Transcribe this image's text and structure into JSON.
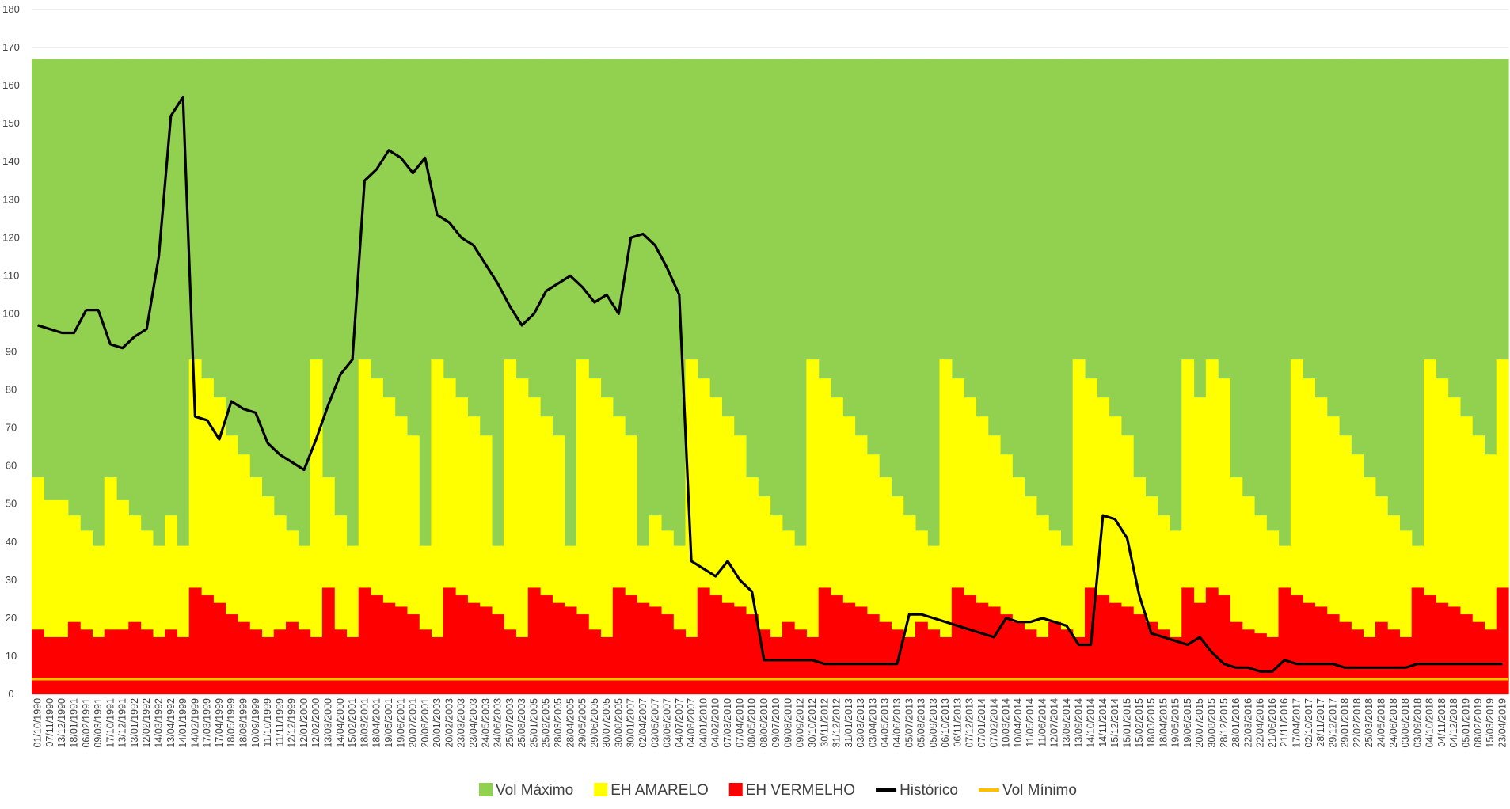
{
  "chart_data": {
    "type": "area",
    "title": "",
    "xlabel": "",
    "ylabel": "",
    "ylim": [
      0,
      180
    ],
    "yticks": [
      0,
      10,
      20,
      30,
      40,
      50,
      60,
      70,
      80,
      90,
      100,
      110,
      120,
      130,
      140,
      150,
      160,
      170,
      180
    ],
    "grid": "horizontal",
    "legend_position": "bottom",
    "categories": [
      "01/10/1990",
      "07/11/1990",
      "13/12/1990",
      "18/01/1991",
      "06/02/1991",
      "09/03/1991",
      "17/10/1991",
      "13/12/1991",
      "13/01/1992",
      "12/02/1992",
      "14/03/1992",
      "13/04/1992",
      "14/01/1999",
      "14/02/1999",
      "17/03/1999",
      "17/04/1999",
      "18/05/1999",
      "18/08/1999",
      "10/09/1999",
      "11/10/1999",
      "11/11/1999",
      "12/12/1999",
      "12/01/2000",
      "12/02/2000",
      "13/03/2000",
      "14/04/2000",
      "15/02/2001",
      "18/03/2001",
      "18/04/2001",
      "19/05/2001",
      "19/06/2001",
      "20/07/2001",
      "20/08/2001",
      "20/01/2003",
      "20/02/2003",
      "23/03/2003",
      "23/04/2003",
      "24/05/2003",
      "24/06/2003",
      "25/07/2003",
      "25/08/2003",
      "25/01/2005",
      "25/02/2005",
      "28/03/2005",
      "28/04/2005",
      "29/05/2005",
      "29/06/2005",
      "30/07/2005",
      "30/08/2005",
      "30/01/2007",
      "02/04/2007",
      "03/05/2007",
      "03/06/2007",
      "04/07/2007",
      "04/08/2007",
      "04/01/2010",
      "04/02/2010",
      "07/03/2010",
      "07/04/2010",
      "08/05/2010",
      "08/06/2010",
      "09/07/2010",
      "09/08/2010",
      "09/09/2012",
      "30/10/2012",
      "30/11/2012",
      "31/12/2012",
      "31/01/2013",
      "03/03/2013",
      "03/04/2013",
      "04/05/2013",
      "04/06/2013",
      "05/07/2013",
      "05/08/2013",
      "05/09/2013",
      "06/10/2013",
      "06/11/2013",
      "07/12/2013",
      "07/01/2014",
      "07/02/2014",
      "10/03/2014",
      "10/04/2014",
      "11/05/2014",
      "11/06/2014",
      "12/07/2014",
      "13/08/2014",
      "13/09/2014",
      "14/10/2014",
      "14/11/2014",
      "15/12/2014",
      "15/01/2015",
      "15/02/2015",
      "18/03/2015",
      "18/04/2015",
      "19/05/2015",
      "19/06/2015",
      "20/07/2015",
      "30/08/2015",
      "28/12/2015",
      "28/01/2016",
      "22/03/2016",
      "22/04/2016",
      "21/06/2016",
      "21/11/2016",
      "17/04/2017",
      "02/10/2017",
      "28/11/2017",
      "29/12/2017",
      "29/01/2018",
      "22/02/2018",
      "25/03/2018",
      "24/05/2018",
      "24/06/2018",
      "03/08/2018",
      "03/09/2018",
      "04/10/2018",
      "04/11/2018",
      "04/12/2018",
      "05/01/2019",
      "08/02/2019",
      "15/03/2019",
      "23/04/2019"
    ],
    "series": [
      {
        "name": "Vol Máximo",
        "color": "#92d050",
        "values": [
          167,
          167,
          167,
          167,
          167,
          167,
          167,
          167,
          167,
          167,
          167,
          167,
          167,
          167,
          167,
          167,
          167,
          167,
          167,
          167,
          167,
          167,
          167,
          167,
          167,
          167,
          167,
          167,
          167,
          167,
          167,
          167,
          167,
          167,
          167,
          167,
          167,
          167,
          167,
          167,
          167,
          167,
          167,
          167,
          167,
          167,
          167,
          167,
          167,
          167,
          167,
          167,
          167,
          167,
          167,
          167,
          167,
          167,
          167,
          167,
          167,
          167,
          167,
          167,
          167,
          167,
          167,
          167,
          167,
          167,
          167,
          167,
          167,
          167,
          167,
          167,
          167,
          167,
          167,
          167,
          167,
          167,
          167,
          167,
          167,
          167,
          167,
          167,
          167,
          167,
          167,
          167,
          167,
          167,
          167,
          167,
          167,
          167,
          167,
          167,
          167,
          167,
          167,
          167,
          167,
          167,
          167,
          167,
          167,
          167,
          167,
          167,
          167,
          167,
          167,
          167,
          167,
          167,
          167,
          167,
          167,
          167
        ]
      },
      {
        "name": "EH AMARELO",
        "color": "#ffff00",
        "values": [
          57,
          51,
          51,
          47,
          43,
          39,
          57,
          51,
          47,
          43,
          39,
          47,
          39,
          88,
          83,
          78,
          68,
          63,
          57,
          52,
          47,
          43,
          39,
          88,
          57,
          47,
          39,
          88,
          83,
          78,
          73,
          68,
          39,
          88,
          83,
          78,
          73,
          68,
          39,
          88,
          83,
          78,
          73,
          68,
          39,
          88,
          83,
          78,
          73,
          68,
          39,
          47,
          43,
          39,
          88,
          83,
          78,
          73,
          68,
          57,
          52,
          47,
          43,
          39,
          88,
          83,
          78,
          73,
          68,
          63,
          57,
          52,
          47,
          43,
          39,
          88,
          83,
          78,
          73,
          68,
          63,
          57,
          52,
          47,
          43,
          39,
          88,
          83,
          78,
          73,
          68,
          57,
          52,
          47,
          43,
          88,
          78,
          88,
          83,
          57,
          52,
          47,
          43,
          39,
          88,
          83,
          78,
          73,
          68,
          63,
          57,
          52,
          47,
          43,
          39,
          88,
          83,
          78,
          73,
          68,
          63,
          88
        ]
      },
      {
        "name": "EH VERMELHO",
        "color": "#ff0000",
        "values": [
          17,
          15,
          15,
          19,
          17,
          15,
          17,
          17,
          19,
          17,
          15,
          17,
          15,
          28,
          26,
          24,
          21,
          19,
          17,
          15,
          17,
          19,
          17,
          15,
          28,
          17,
          15,
          28,
          26,
          24,
          23,
          21,
          17,
          15,
          28,
          26,
          24,
          23,
          21,
          17,
          15,
          28,
          26,
          24,
          23,
          21,
          17,
          15,
          28,
          26,
          24,
          23,
          21,
          17,
          15,
          28,
          26,
          24,
          23,
          21,
          17,
          15,
          19,
          17,
          15,
          28,
          26,
          24,
          23,
          21,
          19,
          17,
          15,
          19,
          17,
          15,
          28,
          26,
          24,
          23,
          21,
          19,
          17,
          15,
          19,
          17,
          15,
          28,
          26,
          24,
          23,
          21,
          19,
          17,
          15,
          28,
          24,
          28,
          26,
          19,
          17,
          16,
          15,
          28,
          26,
          24,
          23,
          21,
          19,
          17,
          15,
          19,
          17,
          15,
          28,
          26,
          24,
          23,
          21,
          19,
          17,
          28
        ]
      },
      {
        "name": "Histórico",
        "color": "#000000",
        "values": [
          97,
          96,
          95,
          95,
          101,
          101,
          92,
          91,
          94,
          96,
          115,
          152,
          157,
          73,
          72,
          67,
          77,
          75,
          74,
          66,
          63,
          61,
          59,
          67,
          76,
          84,
          88,
          135,
          138,
          143,
          141,
          137,
          141,
          126,
          124,
          120,
          118,
          113,
          108,
          102,
          97,
          100,
          106,
          108,
          110,
          107,
          103,
          105,
          100,
          120,
          121,
          118,
          112,
          105,
          35,
          33,
          31,
          35,
          30,
          27,
          9,
          9,
          9,
          9,
          9,
          8,
          8,
          8,
          8,
          8,
          8,
          8,
          21,
          21,
          20,
          19,
          18,
          17,
          16,
          15,
          20,
          19,
          19,
          20,
          19,
          18,
          13,
          13,
          47,
          46,
          41,
          26,
          16,
          15,
          14,
          13,
          15,
          11,
          8,
          7,
          7,
          6,
          6,
          9,
          8,
          8,
          8,
          8,
          7,
          7,
          7,
          7,
          7,
          7,
          8,
          8,
          8,
          8,
          8,
          8,
          8,
          8
        ]
      },
      {
        "name": "Vol Mínimo",
        "color": "#ffc000",
        "values": [
          4,
          4,
          4,
          4,
          4,
          4,
          4,
          4,
          4,
          4,
          4,
          4,
          4,
          4,
          4,
          4,
          4,
          4,
          4,
          4,
          4,
          4,
          4,
          4,
          4,
          4,
          4,
          4,
          4,
          4,
          4,
          4,
          4,
          4,
          4,
          4,
          4,
          4,
          4,
          4,
          4,
          4,
          4,
          4,
          4,
          4,
          4,
          4,
          4,
          4,
          4,
          4,
          4,
          4,
          4,
          4,
          4,
          4,
          4,
          4,
          4,
          4,
          4,
          4,
          4,
          4,
          4,
          4,
          4,
          4,
          4,
          4,
          4,
          4,
          4,
          4,
          4,
          4,
          4,
          4,
          4,
          4,
          4,
          4,
          4,
          4,
          4,
          4,
          4,
          4,
          4,
          4,
          4,
          4,
          4,
          4,
          4,
          4,
          4,
          4,
          4,
          4,
          4,
          4,
          4,
          4,
          4,
          4,
          4,
          4,
          4,
          4,
          4,
          4,
          4,
          4,
          4,
          4,
          4,
          4,
          4,
          4
        ]
      }
    ],
    "legend": [
      {
        "label": "Vol Máximo",
        "color": "#92d050",
        "kind": "box"
      },
      {
        "label": "EH AMARELO",
        "color": "#ffff00",
        "kind": "box"
      },
      {
        "label": "EH VERMELHO",
        "color": "#ff0000",
        "kind": "box"
      },
      {
        "label": "Histórico",
        "color": "#000000",
        "kind": "line"
      },
      {
        "label": "Vol Mínimo",
        "color": "#ffc000",
        "kind": "line"
      }
    ]
  }
}
